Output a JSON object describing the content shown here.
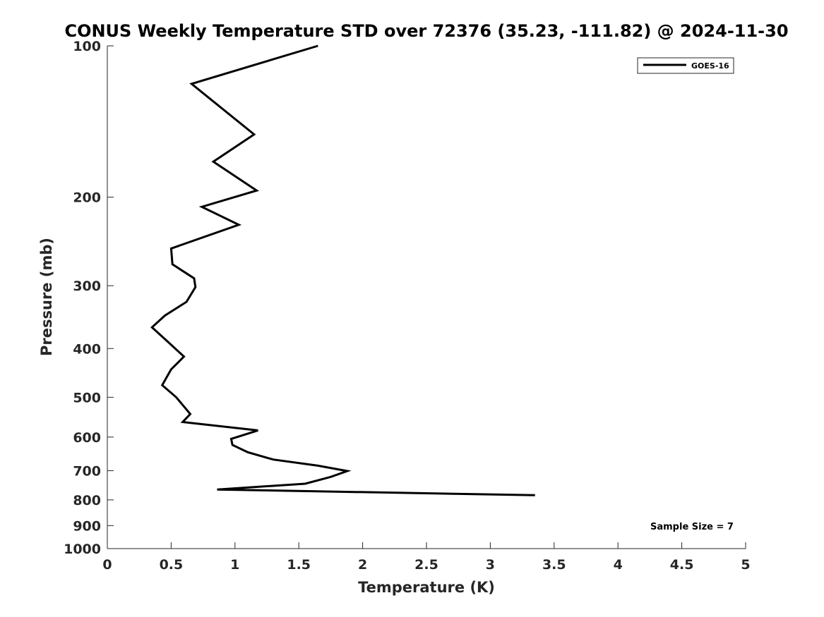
{
  "chart_data": {
    "type": "line",
    "title": "CONUS Weekly Temperature STD over 72376 (35.23, -111.82) @ 2024-11-30",
    "xlabel": "Temperature (K)",
    "ylabel": "Pressure (mb)",
    "xlim": [
      0,
      5
    ],
    "ylim": [
      100,
      1000
    ],
    "y_scale": "log",
    "y_reversed": true,
    "grid": false,
    "legend_position": "top-right",
    "x_ticks": [
      {
        "value": 0,
        "label": "0"
      },
      {
        "value": 0.5,
        "label": "0.5"
      },
      {
        "value": 1,
        "label": "1"
      },
      {
        "value": 1.5,
        "label": "1.5"
      },
      {
        "value": 2,
        "label": "2"
      },
      {
        "value": 2.5,
        "label": "2.5"
      },
      {
        "value": 3,
        "label": "3"
      },
      {
        "value": 3.5,
        "label": "3.5"
      },
      {
        "value": 4,
        "label": "4"
      },
      {
        "value": 4.5,
        "label": "4.5"
      },
      {
        "value": 5,
        "label": "5"
      }
    ],
    "y_ticks": [
      {
        "value": 100,
        "label": "100"
      },
      {
        "value": 200,
        "label": "200"
      },
      {
        "value": 300,
        "label": "300"
      },
      {
        "value": 400,
        "label": "400"
      },
      {
        "value": 500,
        "label": "500"
      },
      {
        "value": 600,
        "label": "600"
      },
      {
        "value": 700,
        "label": "700"
      },
      {
        "value": 800,
        "label": "800"
      },
      {
        "value": 900,
        "label": "900"
      },
      {
        "value": 1000,
        "label": "1000"
      }
    ],
    "series": [
      {
        "name": "GOES-16",
        "color": "#000000",
        "points": [
          {
            "x": 1.65,
            "y": 100
          },
          {
            "x": 0.66,
            "y": 119
          },
          {
            "x": 1.15,
            "y": 150
          },
          {
            "x": 0.83,
            "y": 170
          },
          {
            "x": 1.17,
            "y": 194
          },
          {
            "x": 0.74,
            "y": 209
          },
          {
            "x": 1.03,
            "y": 227
          },
          {
            "x": 0.5,
            "y": 253
          },
          {
            "x": 0.51,
            "y": 272
          },
          {
            "x": 0.68,
            "y": 290
          },
          {
            "x": 0.69,
            "y": 302
          },
          {
            "x": 0.62,
            "y": 323
          },
          {
            "x": 0.45,
            "y": 344
          },
          {
            "x": 0.35,
            "y": 363
          },
          {
            "x": 0.46,
            "y": 385
          },
          {
            "x": 0.6,
            "y": 415
          },
          {
            "x": 0.5,
            "y": 440
          },
          {
            "x": 0.43,
            "y": 473
          },
          {
            "x": 0.54,
            "y": 500
          },
          {
            "x": 0.65,
            "y": 540
          },
          {
            "x": 0.59,
            "y": 560
          },
          {
            "x": 1.18,
            "y": 582
          },
          {
            "x": 0.97,
            "y": 605
          },
          {
            "x": 0.98,
            "y": 622
          },
          {
            "x": 1.1,
            "y": 643
          },
          {
            "x": 1.3,
            "y": 665
          },
          {
            "x": 1.65,
            "y": 684
          },
          {
            "x": 1.88,
            "y": 701
          },
          {
            "x": 1.75,
            "y": 720
          },
          {
            "x": 1.55,
            "y": 743
          },
          {
            "x": 0.86,
            "y": 763
          },
          {
            "x": 3.35,
            "y": 783
          }
        ]
      }
    ],
    "annotations": [
      {
        "text": "Sample Size = 7"
      }
    ]
  }
}
